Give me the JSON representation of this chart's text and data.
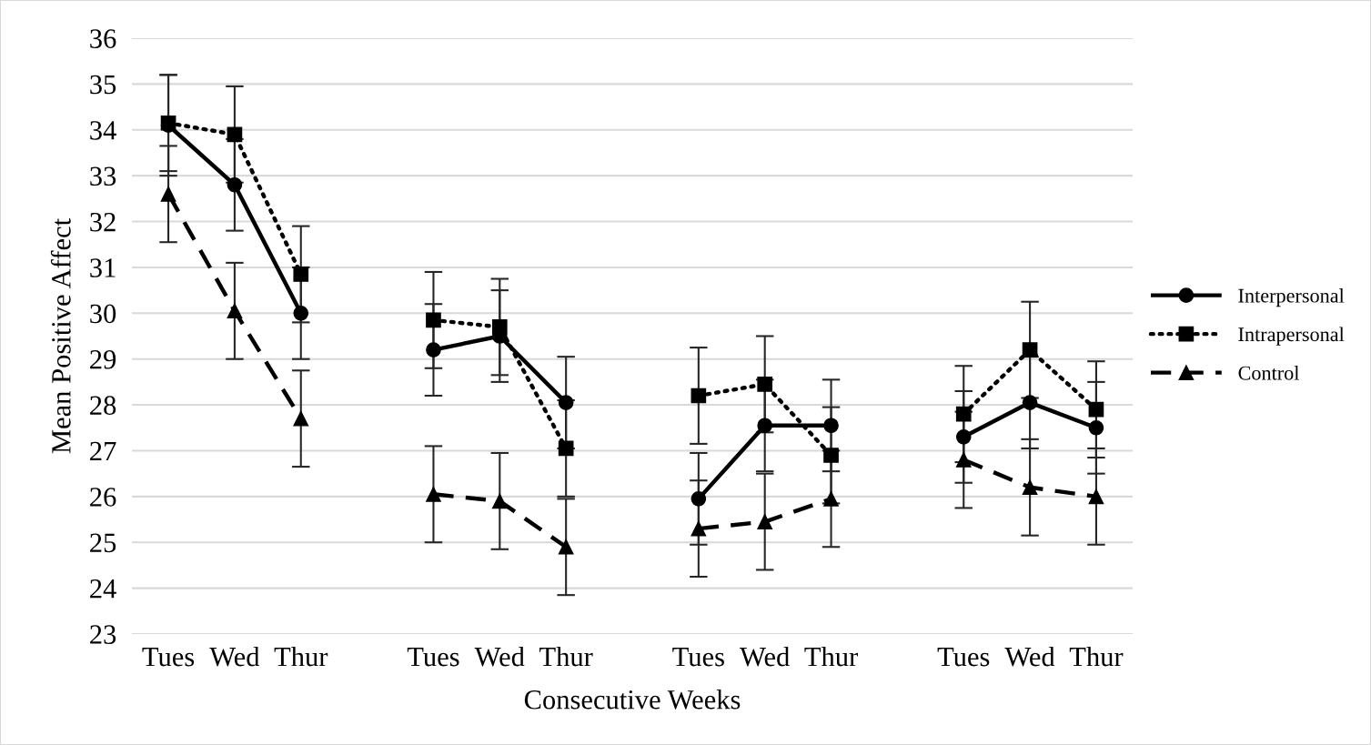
{
  "chart_data": {
    "type": "line",
    "xlabel": "Consecutive Weeks",
    "ylabel": "Mean Positive Affect",
    "categories": [
      "Tues",
      "Wed",
      "Thur",
      null,
      "Tues",
      "Wed",
      "Thur",
      null,
      "Tues",
      "Wed",
      "Thur",
      null,
      "Tues",
      "Wed",
      "Thur"
    ],
    "series": [
      {
        "name": "Interpersonal",
        "color": "#000000",
        "marker": "circle",
        "line_style": "solid",
        "values": [
          34.1,
          32.8,
          30.0,
          null,
          29.2,
          29.5,
          28.05,
          null,
          25.95,
          27.55,
          27.55,
          null,
          27.3,
          28.05,
          27.5
        ],
        "errors": [
          1.1,
          1.0,
          1.0,
          null,
          1.0,
          1.0,
          1.0,
          null,
          1.0,
          1.0,
          1.0,
          null,
          1.0,
          1.0,
          1.0
        ]
      },
      {
        "name": "Intrapersonal",
        "color": "#000000",
        "marker": "square",
        "line_style": "dotted",
        "values": [
          34.15,
          33.9,
          30.85,
          null,
          29.85,
          29.7,
          27.05,
          null,
          28.2,
          28.45,
          26.9,
          null,
          27.8,
          29.2,
          27.9
        ],
        "errors": [
          1.05,
          1.05,
          1.05,
          null,
          1.05,
          1.05,
          1.05,
          null,
          1.05,
          1.05,
          1.05,
          null,
          1.05,
          1.05,
          1.05
        ]
      },
      {
        "name": "Control",
        "color": "#000000",
        "marker": "triangle",
        "line_style": "dashed",
        "values": [
          32.6,
          30.05,
          27.7,
          null,
          26.05,
          25.9,
          24.9,
          null,
          25.3,
          25.45,
          25.95,
          null,
          26.8,
          26.2,
          26.0
        ],
        "errors": [
          1.05,
          1.05,
          1.05,
          null,
          1.05,
          1.05,
          1.05,
          null,
          1.05,
          1.05,
          1.05,
          null,
          1.05,
          1.05,
          1.05
        ]
      }
    ],
    "ylim": [
      23,
      36
    ],
    "yticks": [
      23,
      24,
      25,
      26,
      27,
      28,
      29,
      30,
      31,
      32,
      33,
      34,
      35,
      36
    ],
    "grid": "y",
    "legend": "right"
  }
}
